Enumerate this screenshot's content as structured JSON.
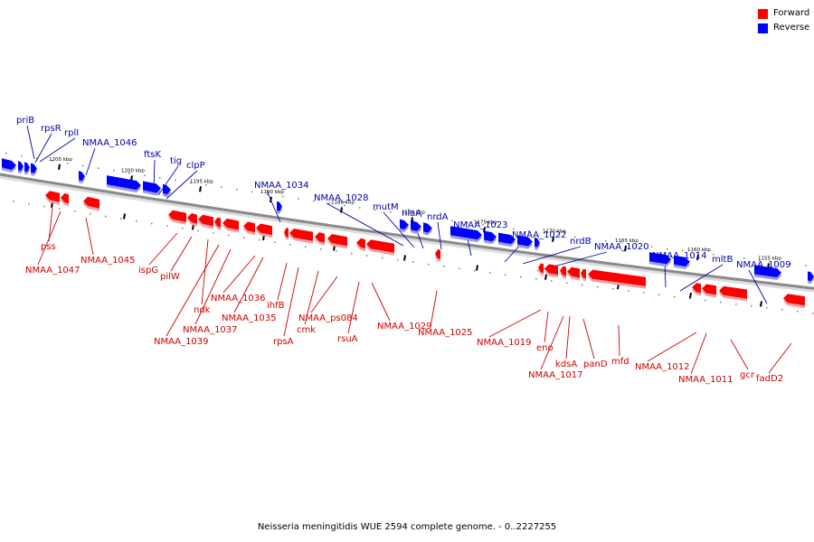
{
  "colors": {
    "forward": "#ff0000",
    "reverse": "#0000ff",
    "backbone": "#8a8a8a",
    "forward_label": "#cc0000",
    "reverse_label": "#0000aa"
  },
  "legend": [
    {
      "label": "Forward",
      "color": "#ff0000"
    },
    {
      "label": "Reverse",
      "color": "#0000ff"
    }
  ],
  "caption": "Neisseria meningitidis WUE 2594 complete genome. - 0..2227255",
  "ticks": [
    "1205 kbp",
    "1200 kbp",
    "1195 kbp",
    "1190 kbp",
    "1185 kbp",
    "1180 kbp",
    "1175 kbp",
    "1170 kbp",
    "1165 kbp",
    "1160 kbp",
    "1155 kbp"
  ],
  "reverse_labels": [
    "priB",
    "rpsR",
    "rplI",
    "NMAA_1046",
    "ftsK",
    "tig",
    "clpP",
    "NMAA_1034",
    "NMAA_1028",
    "mutM",
    "nlaA",
    "nrdA",
    "NMAA_1023",
    "NMAA_1022",
    "nrdB",
    "NMAA_1020",
    "NMAA_1014",
    "mltB",
    "NMAA_1009"
  ],
  "forward_labels": [
    "pss",
    "NMAA_1047",
    "NMAA_1045",
    "ispG",
    "pilW",
    "ndk",
    "NMAA_1039",
    "NMAA_1037",
    "NMAA_1036",
    "NMAA_1035",
    "ihfB",
    "rpsA",
    "cmk",
    "NMAA_ps084",
    "rsuA",
    "NMAA_1029",
    "NMAA_1025",
    "NMAA_1019",
    "eno",
    "kdsA",
    "NMAA_1017",
    "panD",
    "mfd",
    "NMAA_1012",
    "NMAA_1011",
    "gcr",
    "fadD2"
  ]
}
